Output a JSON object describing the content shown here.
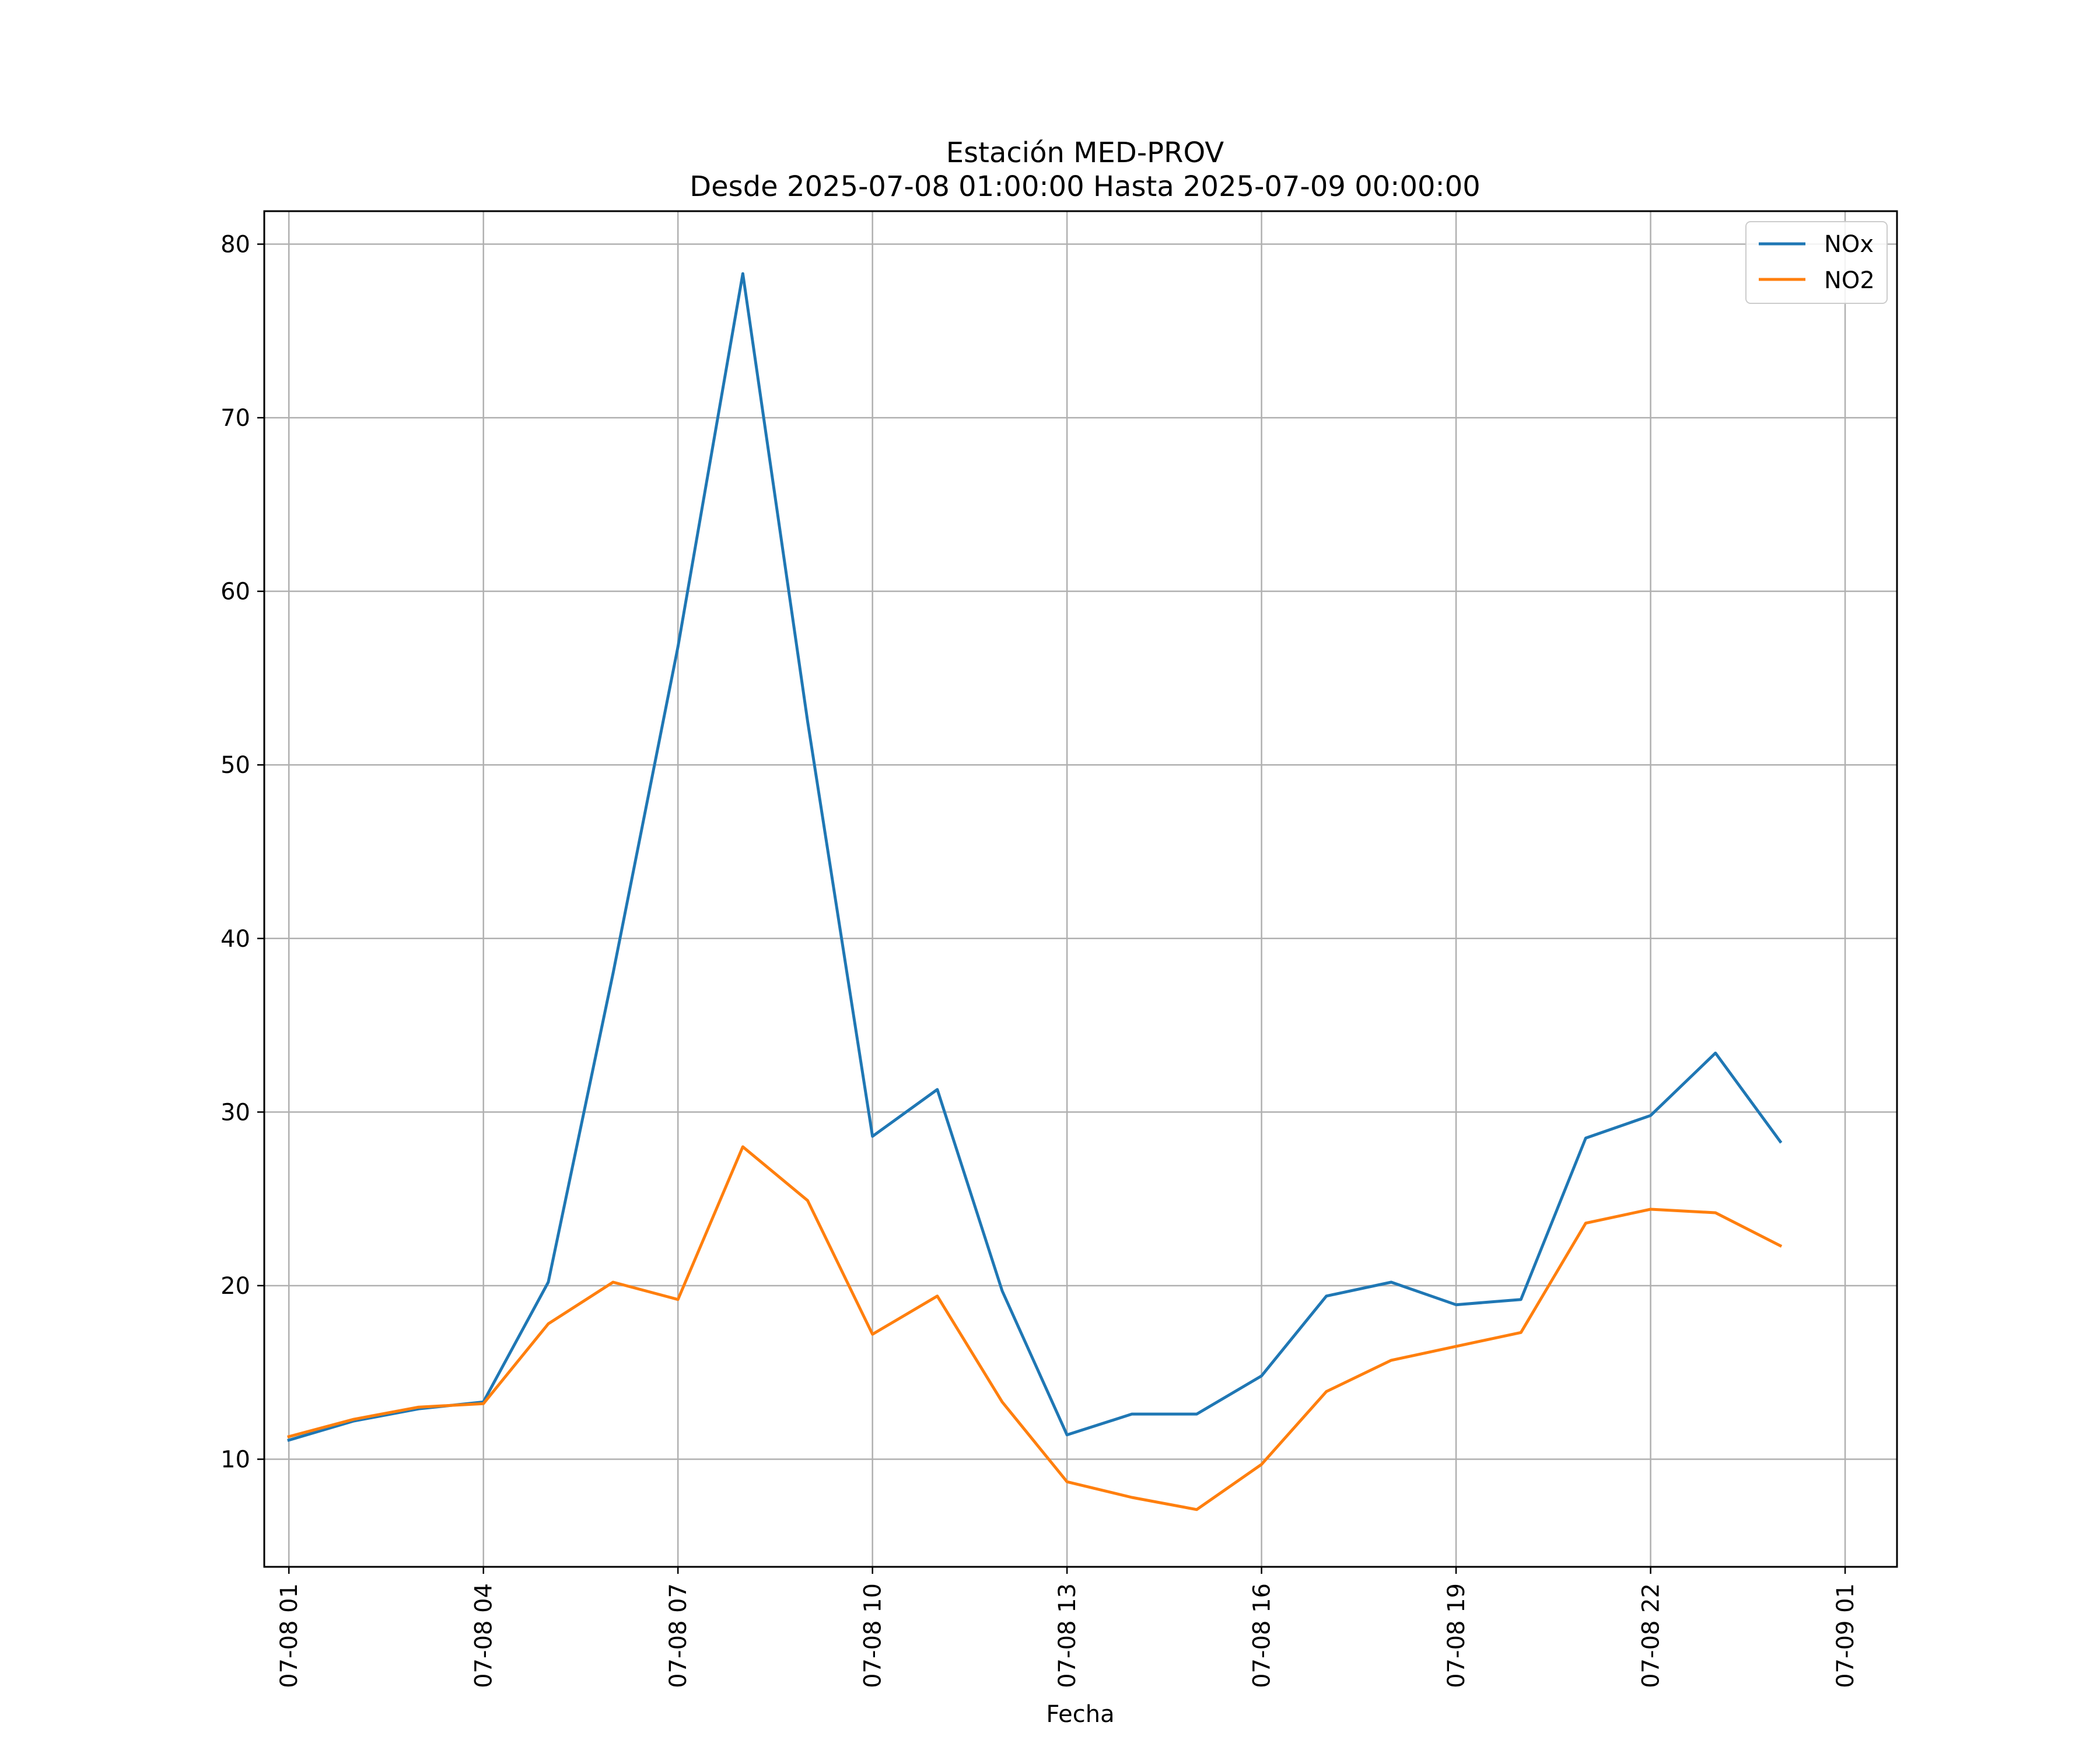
{
  "chart_data": {
    "type": "line",
    "title": "Estación MED-PROV",
    "subtitle": "Desde 2025-07-08 01:00:00 Hasta 2025-07-09 00:00:00",
    "xlabel": "Fecha",
    "ylabel": "",
    "x_unit": "hours since 2025-07-08 00:00",
    "xlim": [
      0.62,
      25.8
    ],
    "ylim": [
      3.8,
      81.9
    ],
    "grid": true,
    "legend_position": "top-right",
    "x_ticks": [
      {
        "value": 1,
        "label": "07-08 01"
      },
      {
        "value": 4,
        "label": "07-08 04"
      },
      {
        "value": 7,
        "label": "07-08 07"
      },
      {
        "value": 10,
        "label": "07-08 10"
      },
      {
        "value": 13,
        "label": "07-08 13"
      },
      {
        "value": 16,
        "label": "07-08 16"
      },
      {
        "value": 19,
        "label": "07-08 19"
      },
      {
        "value": 22,
        "label": "07-08 22"
      },
      {
        "value": 25,
        "label": "07-09 01"
      }
    ],
    "y_ticks": [
      {
        "value": 10,
        "label": "10"
      },
      {
        "value": 20,
        "label": "20"
      },
      {
        "value": 30,
        "label": "30"
      },
      {
        "value": 40,
        "label": "40"
      },
      {
        "value": 50,
        "label": "50"
      },
      {
        "value": 60,
        "label": "60"
      },
      {
        "value": 70,
        "label": "70"
      },
      {
        "value": 80,
        "label": "80"
      }
    ],
    "x": [
      1,
      2,
      3,
      4,
      5,
      6,
      7,
      8,
      9,
      10,
      11,
      12,
      13,
      14,
      15,
      16,
      17,
      18,
      19,
      20,
      21,
      22,
      23,
      24
    ],
    "series": [
      {
        "name": "NOx",
        "color": "#1f77b4",
        "values": [
          11.1,
          12.2,
          12.9,
          13.3,
          20.2,
          38.0,
          56.8,
          78.3,
          52.5,
          28.6,
          31.3,
          19.7,
          11.4,
          12.6,
          12.6,
          14.8,
          19.4,
          20.2,
          18.9,
          19.2,
          28.5,
          29.8,
          33.4,
          28.3
        ]
      },
      {
        "name": "NO2",
        "color": "#ff7f0e",
        "values": [
          11.3,
          12.3,
          13.0,
          13.2,
          17.8,
          20.2,
          19.2,
          28.0,
          24.9,
          17.2,
          19.4,
          13.3,
          8.7,
          7.8,
          7.1,
          9.7,
          13.9,
          15.7,
          16.5,
          17.3,
          23.6,
          24.4,
          24.2,
          22.3
        ]
      }
    ]
  }
}
